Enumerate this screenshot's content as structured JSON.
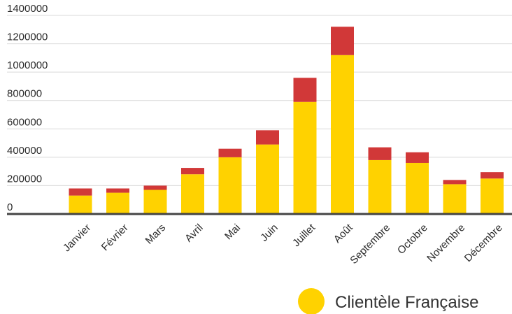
{
  "chart_data": {
    "type": "bar",
    "stacked": true,
    "categories": [
      "Janvier",
      "Février",
      "Mars",
      "Avril",
      "Mai",
      "Juin",
      "Juillet",
      "Août",
      "Septembre",
      "Octobre",
      "Novembre",
      "Décembre"
    ],
    "series": [
      {
        "name": "Clientèle Française",
        "color": "#ffd200",
        "values": [
          130000,
          150000,
          170000,
          280000,
          400000,
          490000,
          790000,
          1120000,
          380000,
          360000,
          210000,
          250000
        ]
      },
      {
        "color": "#d13838",
        "values": [
          50000,
          30000,
          30000,
          45000,
          60000,
          100000,
          170000,
          200000,
          90000,
          75000,
          30000,
          45000
        ]
      }
    ],
    "ylim": [
      0,
      1400000
    ],
    "yticks": [
      0,
      200000,
      400000,
      600000,
      800000,
      1000000,
      1200000,
      1400000
    ],
    "grid": true,
    "legend_position": "bottom-right"
  }
}
